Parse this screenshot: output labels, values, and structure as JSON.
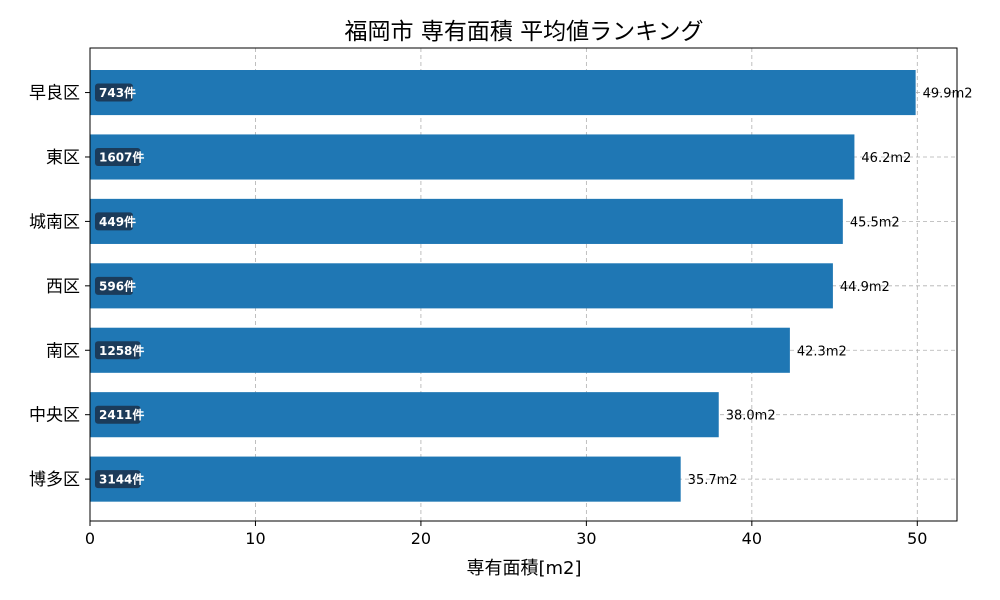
{
  "chart_data": {
    "type": "bar",
    "orientation": "horizontal",
    "title": "福岡市 専有面積 平均値ランキング",
    "xlabel": "専有面積[m2]",
    "ylabel": "",
    "xlim": [
      0,
      52.4
    ],
    "xticks": [
      0,
      10,
      20,
      30,
      40,
      50
    ],
    "grid": true,
    "bar_color": "#1f77b4",
    "count_badge_color": "#1b3b5a",
    "value_suffix": "m2",
    "count_suffix": "件",
    "categories": [
      "早良区",
      "東区",
      "城南区",
      "西区",
      "南区",
      "中央区",
      "博多区"
    ],
    "values": [
      49.9,
      46.2,
      45.5,
      44.9,
      42.3,
      38.0,
      35.7
    ],
    "value_labels": [
      "49.9m2",
      "46.2m2",
      "45.5m2",
      "44.9m2",
      "42.3m2",
      "38.0m2",
      "35.7m2"
    ],
    "counts": [
      743,
      1607,
      449,
      596,
      1258,
      2411,
      3144
    ],
    "count_labels": [
      "743件",
      "1607件",
      "449件",
      "596件",
      "1258件",
      "2411件",
      "3144件"
    ]
  }
}
